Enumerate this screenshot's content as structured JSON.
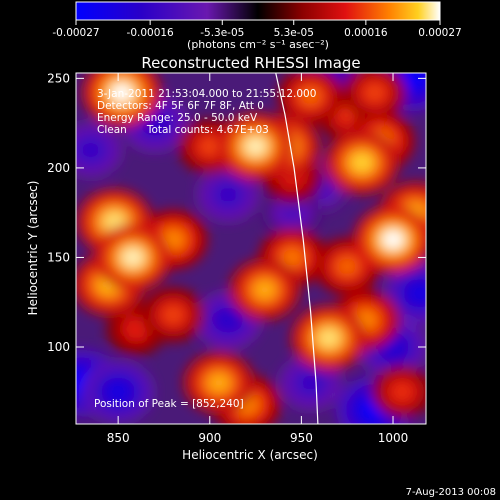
{
  "chart_data": {
    "type": "heatmap",
    "title": "Reconstructed RHESSI Image",
    "xlabel": "Heliocentric X (arcsec)",
    "ylabel": "Heliocentric Y (arcsec)",
    "xlim": [
      827,
      1018
    ],
    "ylim": [
      57,
      253
    ],
    "x_ticks": [
      850,
      900,
      950,
      1000
    ],
    "y_ticks": [
      100,
      150,
      200,
      250
    ],
    "colorbar": {
      "ticks": [
        "-0.00027",
        "-0.00016",
        "-5.3e-05",
        "5.3e-05",
        "0.00016",
        "0.00027"
      ],
      "tick_values": [
        -0.00027,
        -0.00016,
        -5.3e-05,
        5.3e-05,
        0.00016,
        0.00027
      ],
      "unit": "(photons cm⁻² s⁻¹ asec⁻²)"
    },
    "annotations": {
      "time_range": "3-Jan-2011 21:53:04.000 to 21:55:12.000",
      "detectors": "Detectors: 4F 5F 6F 7F 8F, Att 0",
      "energy": "Energy Range: 25.0 - 50.0 keV",
      "clean": "Clean      Total counts: 4.67E+03",
      "peak": "Position of Peak = [852,240]"
    },
    "peak": [
      852,
      240
    ],
    "limb_arc": [
      [
        936,
        253
      ],
      [
        941,
        230
      ],
      [
        946,
        200
      ],
      [
        951,
        160
      ],
      [
        955,
        120
      ],
      [
        958,
        80
      ],
      [
        959,
        57
      ]
    ],
    "blobs": [
      {
        "x": 852,
        "y": 242,
        "v": 0.00027
      },
      {
        "x": 848,
        "y": 170,
        "v": 0.00025
      },
      {
        "x": 858,
        "y": 150,
        "v": 0.00026
      },
      {
        "x": 845,
        "y": 135,
        "v": 0.00023
      },
      {
        "x": 880,
        "y": 160,
        "v": 0.0002
      },
      {
        "x": 925,
        "y": 212,
        "v": 0.00026
      },
      {
        "x": 940,
        "y": 212,
        "v": 0.00024
      },
      {
        "x": 900,
        "y": 212,
        "v": 0.00016
      },
      {
        "x": 955,
        "y": 240,
        "v": 0.00018
      },
      {
        "x": 990,
        "y": 242,
        "v": 0.00016
      },
      {
        "x": 983,
        "y": 203,
        "v": 0.00024
      },
      {
        "x": 993,
        "y": 215,
        "v": 0.0002
      },
      {
        "x": 975,
        "y": 230,
        "v": 0.00015
      },
      {
        "x": 1000,
        "y": 160,
        "v": 0.00027
      },
      {
        "x": 1012,
        "y": 175,
        "v": 0.00022
      },
      {
        "x": 975,
        "y": 145,
        "v": 0.00018
      },
      {
        "x": 965,
        "y": 105,
        "v": 0.00025
      },
      {
        "x": 985,
        "y": 115,
        "v": 0.0002
      },
      {
        "x": 930,
        "y": 132,
        "v": 0.00022
      },
      {
        "x": 945,
        "y": 150,
        "v": 0.00019
      },
      {
        "x": 945,
        "y": 195,
        "v": 0.00014
      },
      {
        "x": 905,
        "y": 80,
        "v": 0.00022
      },
      {
        "x": 920,
        "y": 68,
        "v": 0.0002
      },
      {
        "x": 880,
        "y": 118,
        "v": 0.00016
      },
      {
        "x": 860,
        "y": 110,
        "v": 0.00014
      },
      {
        "x": 1005,
        "y": 75,
        "v": 0.00015
      },
      {
        "x": 870,
        "y": 225,
        "v": -0.00018
      },
      {
        "x": 835,
        "y": 210,
        "v": -0.00016
      },
      {
        "x": 830,
        "y": 80,
        "v": -0.00027
      },
      {
        "x": 850,
        "y": 75,
        "v": -0.00022
      },
      {
        "x": 990,
        "y": 65,
        "v": -0.00027
      },
      {
        "x": 1010,
        "y": 250,
        "v": -0.00027
      },
      {
        "x": 965,
        "y": 250,
        "v": -0.00018
      },
      {
        "x": 1015,
        "y": 130,
        "v": -0.00022
      },
      {
        "x": 955,
        "y": 80,
        "v": -0.00016
      },
      {
        "x": 910,
        "y": 185,
        "v": -0.00016
      },
      {
        "x": 910,
        "y": 115,
        "v": -0.00018
      },
      {
        "x": 945,
        "y": 175,
        "v": -0.00012
      },
      {
        "x": 960,
        "y": 190,
        "v": -0.00014
      },
      {
        "x": 1000,
        "y": 100,
        "v": -0.0002
      }
    ],
    "grid": false
  },
  "footer": {
    "date_stamp": "7-Aug-2013 00:08"
  }
}
